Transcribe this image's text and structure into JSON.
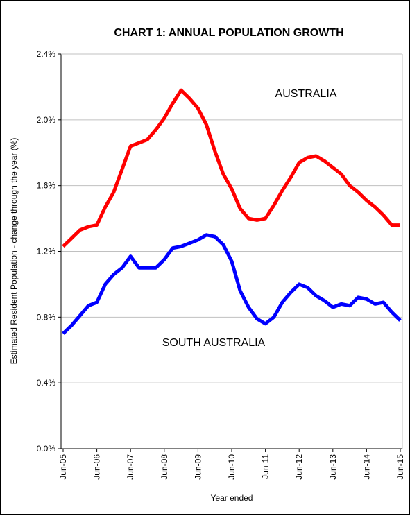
{
  "chart_data": {
    "type": "line",
    "title": "CHART 1: ANNUAL POPULATION GROWTH",
    "x_label": "Year ended",
    "y_label": "Estimated Resident Population - change through the year (%)",
    "categories": [
      "Jun-05",
      null,
      null,
      null,
      "Jun-06",
      null,
      null,
      null,
      "Jun-07",
      null,
      null,
      null,
      "Jun-08",
      null,
      null,
      null,
      "Jun-09",
      null,
      null,
      null,
      "Jun-10",
      null,
      null,
      null,
      "Jun-11",
      null,
      null,
      null,
      "Jun-12",
      null,
      null,
      null,
      "Jun-13",
      null,
      null,
      null,
      "Jun-14",
      null,
      null,
      null,
      "Jun-15"
    ],
    "series": [
      {
        "name": "AUSTRALIA",
        "color": "#ff0000",
        "values": [
          1.23,
          1.28,
          1.33,
          1.35,
          1.36,
          1.47,
          1.56,
          1.7,
          1.84,
          1.86,
          1.88,
          1.94,
          2.01,
          2.1,
          2.18,
          2.13,
          2.07,
          1.97,
          1.81,
          1.67,
          1.58,
          1.46,
          1.4,
          1.39,
          1.4,
          1.48,
          1.57,
          1.65,
          1.74,
          1.77,
          1.78,
          1.75,
          1.71,
          1.67,
          1.6,
          1.56,
          1.51,
          1.47,
          1.42,
          1.36,
          1.36
        ]
      },
      {
        "name": "SOUTH AUSTRALIA",
        "color": "#0000ff",
        "values": [
          0.7,
          0.75,
          0.81,
          0.87,
          0.89,
          1.0,
          1.06,
          1.1,
          1.17,
          1.1,
          1.1,
          1.1,
          1.15,
          1.22,
          1.23,
          1.25,
          1.27,
          1.3,
          1.29,
          1.24,
          1.14,
          0.96,
          0.86,
          0.79,
          0.76,
          0.8,
          0.89,
          0.95,
          1.0,
          0.98,
          0.93,
          0.9,
          0.86,
          0.88,
          0.87,
          0.92,
          0.91,
          0.88,
          0.89,
          0.83,
          0.78
        ]
      }
    ],
    "ylim": [
      0,
      2.4
    ],
    "yticks": [
      {
        "value": 0,
        "label": "0.0%"
      },
      {
        "value": 0.4,
        "label": "0.4%"
      },
      {
        "value": 0.8,
        "label": "0.8%"
      },
      {
        "value": 1.2,
        "label": "1.2%"
      },
      {
        "value": 1.6,
        "label": "1.6%"
      },
      {
        "value": 2.0,
        "label": "2.0%"
      },
      {
        "value": 2.4,
        "label": "2.4%"
      }
    ],
    "grid": true
  }
}
